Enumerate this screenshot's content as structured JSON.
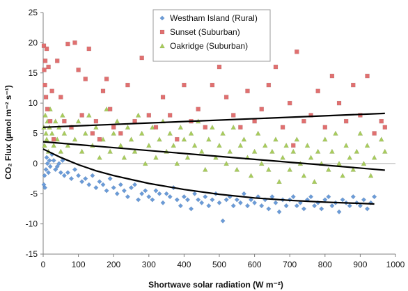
{
  "chart_data": {
    "type": "scatter",
    "xlabel": "Shortwave solar radiation (W m⁻²)",
    "ylabel": "CO₂ Flux (µmol m⁻² s⁻¹)",
    "xlim": [
      0,
      1000
    ],
    "ylim": [
      -15,
      25
    ],
    "x_ticks": [
      "0",
      "100",
      "200",
      "300",
      "400",
      "500",
      "600",
      "700",
      "800",
      "900",
      "1000"
    ],
    "y_ticks": [
      "25",
      "20",
      "15",
      "10",
      "5",
      "0",
      "-5",
      "-10",
      "-15"
    ],
    "grid": false,
    "zero_line": true,
    "legend_position": "top-center",
    "series": [
      {
        "name": "Westham Island (Rural)",
        "color": "#6a9bd8",
        "marker": "diamond",
        "points": [
          [
            2,
            -3.5
          ],
          [
            4,
            -2
          ],
          [
            5,
            -4
          ],
          [
            8,
            -1
          ],
          [
            10,
            1
          ],
          [
            12,
            0
          ],
          [
            15,
            -1.5
          ],
          [
            18,
            0.5
          ],
          [
            20,
            -0.5
          ],
          [
            25,
            1.5
          ],
          [
            30,
            0.5
          ],
          [
            35,
            -1
          ],
          [
            40,
            -0.5
          ],
          [
            45,
            0
          ],
          [
            50,
            -1.5
          ],
          [
            55,
            0.5
          ],
          [
            60,
            -2
          ],
          [
            70,
            -1.5
          ],
          [
            80,
            -2.5
          ],
          [
            90,
            -1
          ],
          [
            100,
            -2
          ],
          [
            110,
            -3
          ],
          [
            120,
            -2.5
          ],
          [
            130,
            -3.5
          ],
          [
            140,
            -2
          ],
          [
            150,
            -4
          ],
          [
            160,
            -3
          ],
          [
            170,
            -3.5
          ],
          [
            180,
            -4.5
          ],
          [
            190,
            -2.5
          ],
          [
            200,
            -4
          ],
          [
            210,
            -5
          ],
          [
            220,
            -3.5
          ],
          [
            230,
            -4.5
          ],
          [
            240,
            -5.5
          ],
          [
            250,
            -4
          ],
          [
            260,
            -3.5
          ],
          [
            270,
            -6
          ],
          [
            280,
            -5
          ],
          [
            290,
            -4.5
          ],
          [
            300,
            -5.5
          ],
          [
            310,
            -6
          ],
          [
            320,
            -4.5
          ],
          [
            330,
            -5
          ],
          [
            340,
            -6.5
          ],
          [
            350,
            -5
          ],
          [
            360,
            -5.5
          ],
          [
            370,
            -4
          ],
          [
            380,
            -6
          ],
          [
            390,
            -7
          ],
          [
            400,
            -5.5
          ],
          [
            410,
            -6
          ],
          [
            420,
            -7.5
          ],
          [
            430,
            -5
          ],
          [
            440,
            -6
          ],
          [
            450,
            -6.5
          ],
          [
            460,
            -5.5
          ],
          [
            470,
            -7
          ],
          [
            480,
            -6
          ],
          [
            490,
            -5
          ],
          [
            500,
            -6.5
          ],
          [
            510,
            -9.5
          ],
          [
            520,
            -6
          ],
          [
            530,
            -5.5
          ],
          [
            540,
            -7
          ],
          [
            550,
            -6
          ],
          [
            560,
            -6.5
          ],
          [
            570,
            -5
          ],
          [
            580,
            -7
          ],
          [
            590,
            -6
          ],
          [
            600,
            -6.5
          ],
          [
            610,
            -5.5
          ],
          [
            620,
            -7
          ],
          [
            630,
            -6
          ],
          [
            640,
            -7.5
          ],
          [
            650,
            -5.5
          ],
          [
            660,
            -6.5
          ],
          [
            670,
            -8
          ],
          [
            680,
            -6
          ],
          [
            690,
            -7
          ],
          [
            700,
            -6
          ],
          [
            710,
            -5.5
          ],
          [
            720,
            -7
          ],
          [
            730,
            -6.5
          ],
          [
            740,
            -7.5
          ],
          [
            750,
            -6
          ],
          [
            760,
            -5.5
          ],
          [
            770,
            -7
          ],
          [
            780,
            -6.5
          ],
          [
            790,
            -7.5
          ],
          [
            800,
            -6
          ],
          [
            810,
            -5.5
          ],
          [
            820,
            -7
          ],
          [
            830,
            -6.5
          ],
          [
            840,
            -8
          ],
          [
            850,
            -6
          ],
          [
            860,
            -6.5
          ],
          [
            870,
            -7
          ],
          [
            880,
            -5.5
          ],
          [
            890,
            -6.5
          ],
          [
            900,
            -7
          ],
          [
            910,
            -6
          ],
          [
            920,
            -7.5
          ],
          [
            930,
            -6.5
          ],
          [
            940,
            -5.5
          ]
        ]
      },
      {
        "name": "Sunset (Suburban)",
        "color": "#e07070",
        "marker": "square",
        "points": [
          [
            2,
            19.5
          ],
          [
            3,
            15.5
          ],
          [
            5,
            13
          ],
          [
            6,
            17
          ],
          [
            8,
            11
          ],
          [
            10,
            19
          ],
          [
            12,
            9
          ],
          [
            15,
            16
          ],
          [
            20,
            7
          ],
          [
            25,
            12
          ],
          [
            30,
            4
          ],
          [
            40,
            17
          ],
          [
            50,
            11
          ],
          [
            60,
            7
          ],
          [
            70,
            19.8
          ],
          [
            80,
            6
          ],
          [
            90,
            20
          ],
          [
            100,
            15.5
          ],
          [
            110,
            8
          ],
          [
            120,
            14
          ],
          [
            130,
            19
          ],
          [
            140,
            5
          ],
          [
            150,
            7
          ],
          [
            160,
            4
          ],
          [
            170,
            12
          ],
          [
            180,
            14
          ],
          [
            190,
            9
          ],
          [
            200,
            6
          ],
          [
            220,
            5
          ],
          [
            240,
            13
          ],
          [
            260,
            7
          ],
          [
            280,
            17.5
          ],
          [
            300,
            8
          ],
          [
            320,
            6
          ],
          [
            340,
            11
          ],
          [
            360,
            8
          ],
          [
            380,
            4
          ],
          [
            400,
            13
          ],
          [
            420,
            7
          ],
          [
            440,
            9
          ],
          [
            460,
            6
          ],
          [
            480,
            13
          ],
          [
            500,
            16
          ],
          [
            520,
            11
          ],
          [
            540,
            8
          ],
          [
            560,
            6
          ],
          [
            580,
            12
          ],
          [
            600,
            7
          ],
          [
            620,
            9
          ],
          [
            640,
            13
          ],
          [
            660,
            16
          ],
          [
            680,
            6
          ],
          [
            700,
            10
          ],
          [
            710,
            3
          ],
          [
            720,
            18.5
          ],
          [
            740,
            7
          ],
          [
            760,
            8
          ],
          [
            780,
            12
          ],
          [
            800,
            6
          ],
          [
            820,
            14.5
          ],
          [
            840,
            10
          ],
          [
            860,
            7
          ],
          [
            880,
            13
          ],
          [
            900,
            8
          ],
          [
            920,
            14.5
          ],
          [
            940,
            5
          ],
          [
            960,
            7
          ],
          [
            970,
            6
          ]
        ]
      },
      {
        "name": "Oakridge (Suburban)",
        "color": "#a8cc5c",
        "marker": "triangle",
        "points": [
          [
            2,
            6
          ],
          [
            4,
            3
          ],
          [
            6,
            8
          ],
          [
            8,
            5
          ],
          [
            10,
            4
          ],
          [
            12,
            7
          ],
          [
            15,
            2
          ],
          [
            18,
            6
          ],
          [
            20,
            9
          ],
          [
            25,
            5
          ],
          [
            30,
            3
          ],
          [
            35,
            7
          ],
          [
            40,
            4
          ],
          [
            45,
            6
          ],
          [
            50,
            2
          ],
          [
            55,
            8
          ],
          [
            60,
            5
          ],
          [
            70,
            3
          ],
          [
            80,
            6
          ],
          [
            90,
            4
          ],
          [
            100,
            7
          ],
          [
            110,
            2
          ],
          [
            120,
            5
          ],
          [
            130,
            8
          ],
          [
            140,
            3
          ],
          [
            150,
            6
          ],
          [
            160,
            1
          ],
          [
            170,
            4
          ],
          [
            180,
            9
          ],
          [
            190,
            2
          ],
          [
            200,
            5
          ],
          [
            210,
            7
          ],
          [
            220,
            3
          ],
          [
            230,
            1
          ],
          [
            240,
            6
          ],
          [
            250,
            4
          ],
          [
            260,
            2
          ],
          [
            270,
            8
          ],
          [
            280,
            5
          ],
          [
            290,
            0
          ],
          [
            300,
            3
          ],
          [
            310,
            6
          ],
          [
            320,
            1
          ],
          [
            330,
            4
          ],
          [
            340,
            7
          ],
          [
            350,
            2
          ],
          [
            360,
            5
          ],
          [
            370,
            3
          ],
          [
            380,
            0
          ],
          [
            390,
            6
          ],
          [
            400,
            4
          ],
          [
            410,
            1
          ],
          [
            420,
            5
          ],
          [
            430,
            3
          ],
          [
            440,
            7
          ],
          [
            450,
            2
          ],
          [
            460,
            -1
          ],
          [
            470,
            4
          ],
          [
            480,
            6
          ],
          [
            490,
            1
          ],
          [
            500,
            3
          ],
          [
            510,
            5
          ],
          [
            520,
            0
          ],
          [
            530,
            2
          ],
          [
            540,
            6
          ],
          [
            550,
            -1
          ],
          [
            560,
            3
          ],
          [
            570,
            4
          ],
          [
            580,
            1
          ],
          [
            590,
            -2
          ],
          [
            600,
            2
          ],
          [
            610,
            5
          ],
          [
            620,
            0
          ],
          [
            630,
            3
          ],
          [
            640,
            -1
          ],
          [
            650,
            2
          ],
          [
            660,
            4
          ],
          [
            670,
            -3
          ],
          [
            680,
            1
          ],
          [
            690,
            3
          ],
          [
            700,
            -1
          ],
          [
            710,
            2
          ],
          [
            720,
            4
          ],
          [
            730,
            0
          ],
          [
            740,
            -2
          ],
          [
            750,
            3
          ],
          [
            760,
            1
          ],
          [
            770,
            -3
          ],
          [
            780,
            2
          ],
          [
            790,
            0
          ],
          [
            800,
            4
          ],
          [
            810,
            -1
          ],
          [
            820,
            2
          ],
          [
            830,
            5
          ],
          [
            840,
            0
          ],
          [
            850,
            -2
          ],
          [
            860,
            3
          ],
          [
            870,
            1
          ],
          [
            880,
            -1
          ],
          [
            890,
            2
          ],
          [
            900,
            5
          ],
          [
            910,
            0
          ],
          [
            920,
            3
          ],
          [
            930,
            -2
          ],
          [
            940,
            1
          ],
          [
            960,
            4
          ],
          [
            970,
            2
          ]
        ]
      }
    ],
    "trend_lines": [
      {
        "series": "Sunset (Suburban)",
        "x": [
          0,
          970
        ],
        "y": [
          6,
          8.3
        ]
      },
      {
        "series": "Oakridge (Suburban)",
        "x": [
          0,
          970
        ],
        "y": [
          3.6,
          -1.1
        ]
      },
      {
        "series": "Westham Island (Rural)",
        "x": [
          0,
          50,
          100,
          150,
          200,
          300,
          400,
          500,
          600,
          700,
          800,
          900,
          940
        ],
        "y": [
          2.4,
          1.0,
          -0.2,
          -1.2,
          -2.0,
          -3.3,
          -4.3,
          -5.1,
          -5.7,
          -6.1,
          -6.4,
          -6.6,
          -6.7
        ]
      }
    ]
  }
}
